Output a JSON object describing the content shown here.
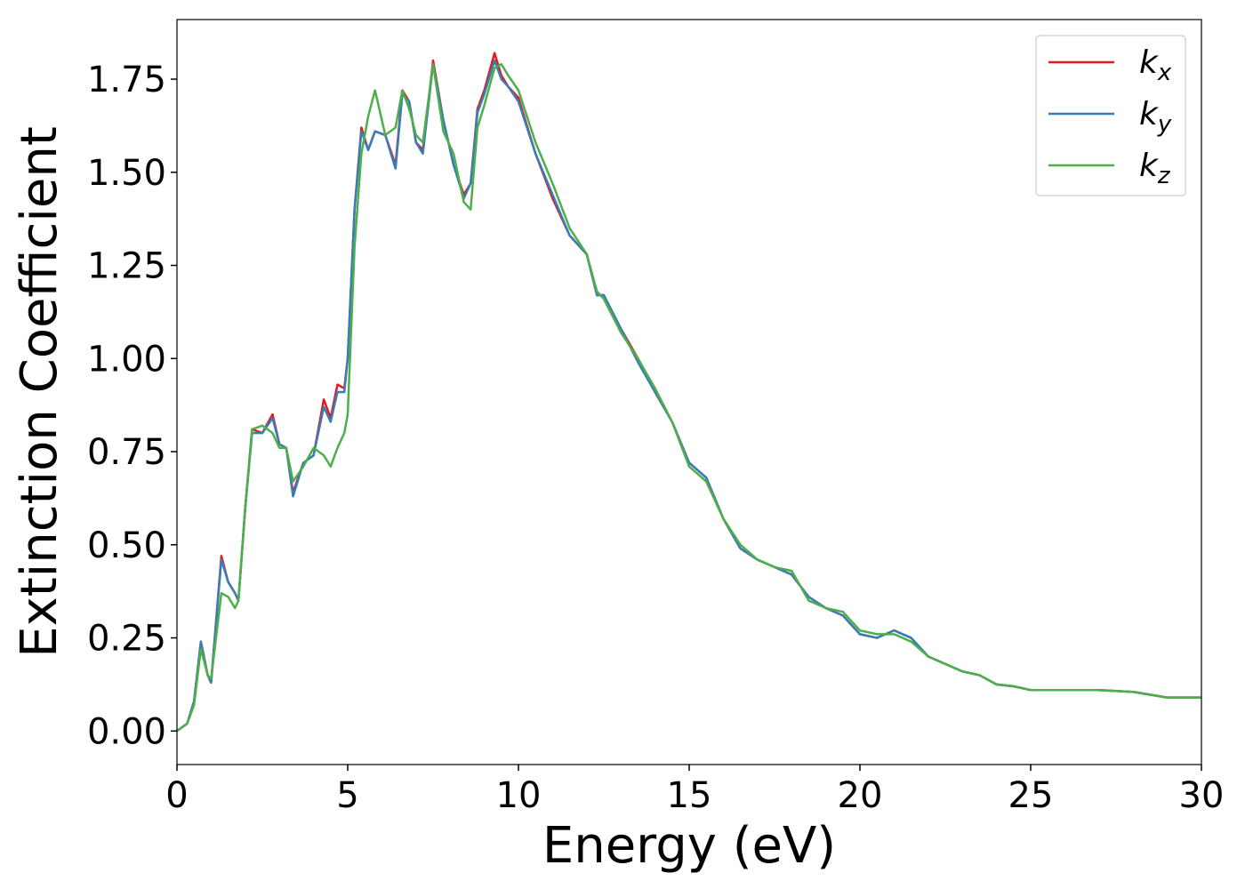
{
  "chart_data": {
    "type": "line",
    "x_label": "Energy (eV)",
    "y_label": "Extinction Coefficient",
    "x": [
      0,
      0.3,
      0.5,
      0.7,
      0.9,
      1.0,
      1.3,
      1.5,
      1.7,
      1.8,
      2.0,
      2.2,
      2.5,
      2.8,
      3.0,
      3.2,
      3.4,
      3.7,
      4.0,
      4.3,
      4.5,
      4.7,
      4.9,
      5.0,
      5.2,
      5.4,
      5.6,
      5.8,
      6.1,
      6.4,
      6.6,
      6.8,
      7.0,
      7.2,
      7.5,
      7.8,
      8.1,
      8.4,
      8.6,
      8.8,
      9.0,
      9.3,
      9.5,
      9.7,
      10.0,
      10.5,
      11.0,
      11.5,
      12.0,
      12.3,
      12.5,
      13.0,
      13.5,
      14.0,
      14.5,
      15.0,
      15.5,
      16.0,
      16.5,
      17.0,
      17.5,
      18.0,
      18.5,
      19.0,
      19.5,
      20.0,
      20.5,
      21.0,
      21.5,
      22.0,
      22.5,
      23.0,
      23.5,
      24.0,
      24.5,
      25.0,
      26.0,
      27.0,
      28.0,
      29.0,
      30.0
    ],
    "series": [
      {
        "name": "kx",
        "color": "#e41a1c",
        "values": [
          0,
          0.02,
          0.08,
          0.24,
          0.15,
          0.13,
          0.47,
          0.4,
          0.37,
          0.35,
          0.6,
          0.81,
          0.8,
          0.85,
          0.77,
          0.76,
          0.64,
          0.72,
          0.74,
          0.89,
          0.84,
          0.93,
          0.92,
          1.0,
          1.4,
          1.62,
          1.56,
          1.61,
          1.6,
          1.52,
          1.72,
          1.69,
          1.58,
          1.56,
          1.8,
          1.64,
          1.52,
          1.44,
          1.47,
          1.67,
          1.72,
          1.82,
          1.76,
          1.73,
          1.7,
          1.55,
          1.43,
          1.33,
          1.28,
          1.17,
          1.17,
          1.08,
          1.0,
          0.91,
          0.83,
          0.72,
          0.68,
          0.57,
          0.49,
          0.46,
          0.44,
          0.42,
          0.36,
          0.33,
          0.31,
          0.26,
          0.25,
          0.27,
          0.25,
          0.2,
          0.18,
          0.16,
          0.15,
          0.125,
          0.12,
          0.11,
          0.11,
          0.11,
          0.105,
          0.09,
          0.09
        ]
      },
      {
        "name": "ky",
        "color": "#377eb8",
        "values": [
          0,
          0.02,
          0.08,
          0.24,
          0.15,
          0.13,
          0.46,
          0.4,
          0.37,
          0.35,
          0.6,
          0.8,
          0.8,
          0.84,
          0.77,
          0.76,
          0.63,
          0.72,
          0.74,
          0.87,
          0.83,
          0.91,
          0.91,
          1.0,
          1.4,
          1.61,
          1.56,
          1.61,
          1.6,
          1.51,
          1.71,
          1.69,
          1.58,
          1.55,
          1.79,
          1.64,
          1.52,
          1.43,
          1.47,
          1.66,
          1.71,
          1.8,
          1.75,
          1.73,
          1.69,
          1.55,
          1.44,
          1.33,
          1.28,
          1.17,
          1.17,
          1.08,
          0.99,
          0.91,
          0.83,
          0.72,
          0.68,
          0.57,
          0.49,
          0.46,
          0.44,
          0.42,
          0.36,
          0.33,
          0.31,
          0.26,
          0.25,
          0.27,
          0.25,
          0.2,
          0.18,
          0.16,
          0.15,
          0.125,
          0.12,
          0.11,
          0.11,
          0.11,
          0.105,
          0.09,
          0.09
        ]
      },
      {
        "name": "kz",
        "color": "#4daf4a",
        "values": [
          0,
          0.02,
          0.07,
          0.22,
          0.15,
          0.14,
          0.37,
          0.36,
          0.33,
          0.35,
          0.6,
          0.81,
          0.82,
          0.8,
          0.76,
          0.76,
          0.67,
          0.71,
          0.76,
          0.74,
          0.71,
          0.76,
          0.8,
          0.85,
          1.3,
          1.55,
          1.65,
          1.72,
          1.6,
          1.62,
          1.72,
          1.67,
          1.6,
          1.58,
          1.79,
          1.61,
          1.55,
          1.42,
          1.4,
          1.62,
          1.68,
          1.78,
          1.79,
          1.76,
          1.72,
          1.58,
          1.47,
          1.35,
          1.28,
          1.18,
          1.16,
          1.07,
          1.0,
          0.92,
          0.83,
          0.71,
          0.67,
          0.57,
          0.5,
          0.46,
          0.44,
          0.43,
          0.35,
          0.33,
          0.32,
          0.27,
          0.26,
          0.26,
          0.24,
          0.2,
          0.18,
          0.16,
          0.15,
          0.125,
          0.12,
          0.11,
          0.11,
          0.11,
          0.105,
          0.09,
          0.09
        ]
      }
    ],
    "xlim": [
      0,
      30
    ],
    "xticks": [
      0,
      5,
      10,
      15,
      20,
      25,
      30
    ],
    "ylim": [
      -0.09,
      1.91
    ],
    "yticks": [
      {
        "value": 0,
        "label": "0.00"
      },
      {
        "value": 0.25,
        "label": "0.25"
      },
      {
        "value": 0.5,
        "label": "0.50"
      },
      {
        "value": 0.75,
        "label": "0.75"
      },
      {
        "value": 1,
        "label": "1.00"
      },
      {
        "value": 1.25,
        "label": "1.25"
      },
      {
        "value": 1.5,
        "label": "1.50"
      },
      {
        "value": 1.75,
        "label": "1.75"
      }
    ],
    "legend": "upper right",
    "grid": false
  }
}
